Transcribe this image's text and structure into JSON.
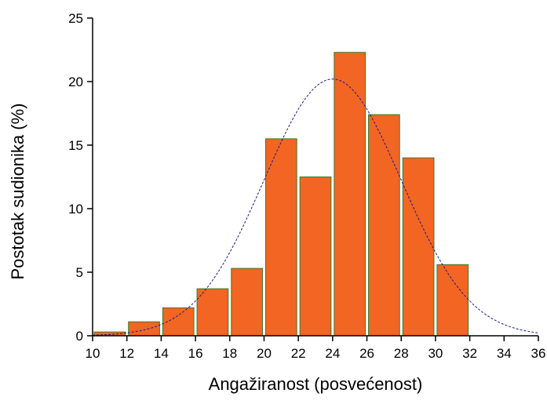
{
  "chart_data": {
    "type": "bar",
    "title": "",
    "xlabel": "Angažiranost (posvećenost)",
    "ylabel": "Postotak sudionika (%)",
    "xlim": [
      10,
      36
    ],
    "ylim": [
      0,
      25
    ],
    "x_ticks": [
      "10",
      "12",
      "14",
      "16",
      "18",
      "20",
      "22",
      "24",
      "26",
      "28",
      "30",
      "32",
      "34",
      "36"
    ],
    "y_ticks": [
      "0",
      "5",
      "10",
      "15",
      "20",
      "25"
    ],
    "bin_width": 2,
    "bins": [
      {
        "start": 10,
        "end": 12,
        "value": 0.3
      },
      {
        "start": 12,
        "end": 14,
        "value": 1.1
      },
      {
        "start": 14,
        "end": 16,
        "value": 2.2
      },
      {
        "start": 16,
        "end": 18,
        "value": 3.7
      },
      {
        "start": 18,
        "end": 20,
        "value": 5.3
      },
      {
        "start": 20,
        "end": 22,
        "value": 15.5
      },
      {
        "start": 22,
        "end": 24,
        "value": 12.5
      },
      {
        "start": 24,
        "end": 26,
        "value": 22.3
      },
      {
        "start": 26,
        "end": 28,
        "value": 17.4
      },
      {
        "start": 28,
        "end": 30,
        "value": 14.0
      },
      {
        "start": 30,
        "end": 32,
        "value": 5.6
      }
    ],
    "normal_curve": {
      "mean": 24,
      "peak": 20.2,
      "sd": 4.0
    },
    "grid": false,
    "colors": {
      "bar_fill": "#F26522",
      "bar_stroke": "#3a7a2a",
      "curve": "#1a1a8c",
      "axis": "#000000"
    }
  }
}
